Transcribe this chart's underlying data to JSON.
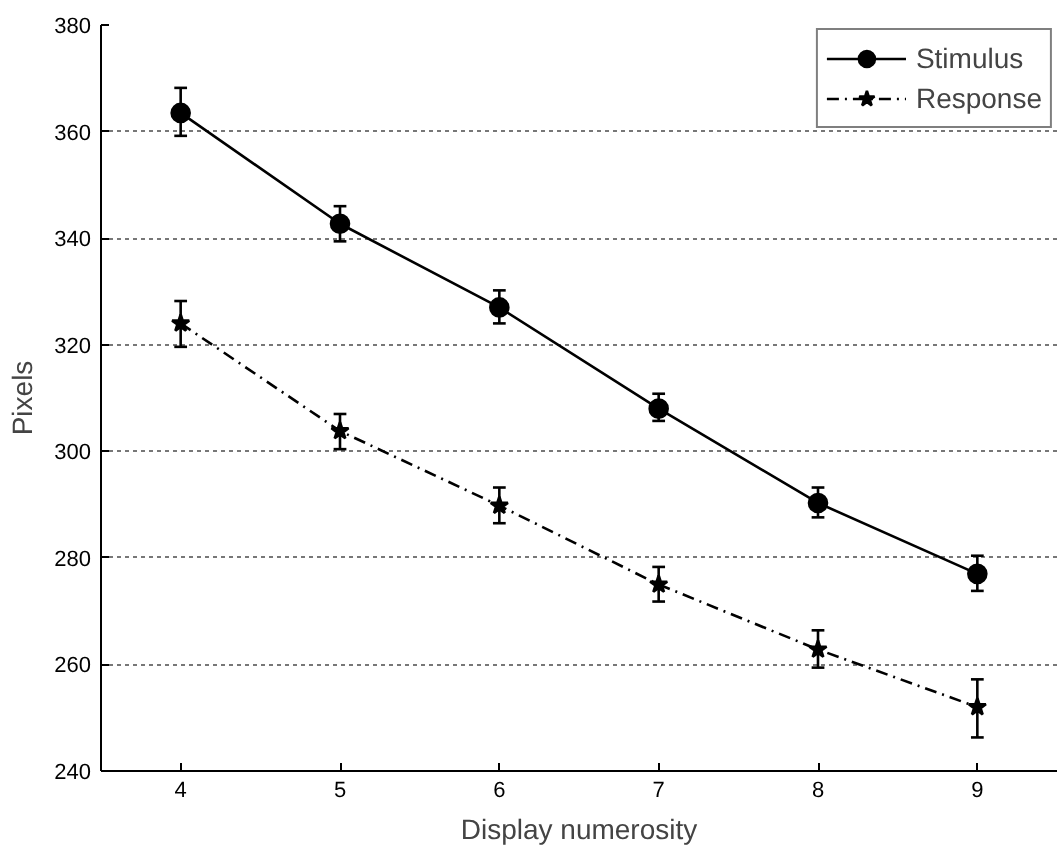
{
  "chart_data": {
    "type": "line",
    "xlabel": "Display numerosity",
    "ylabel": "Pixels",
    "x": [
      4,
      5,
      6,
      7,
      8,
      9
    ],
    "series": [
      {
        "name": "Stimulus",
        "color": "#000000",
        "marker": "circle",
        "line_style": "solid",
        "values": [
          363.5,
          342.7,
          327,
          308,
          290.3,
          277
        ],
        "errors": [
          [
            359.2,
            368.2
          ],
          [
            339.4,
            346
          ],
          [
            324,
            330.2
          ],
          [
            305.7,
            310.8
          ],
          [
            287.6,
            293.2
          ],
          [
            273.8,
            280.4
          ]
        ]
      },
      {
        "name": "Response",
        "color": "#000000",
        "marker": "star",
        "line_style": "dashdot",
        "values": [
          324,
          303.8,
          289.8,
          275,
          262.8,
          252
        ],
        "errors": [
          [
            319.6,
            328.2
          ],
          [
            300.4,
            307
          ],
          [
            286.5,
            293.2
          ],
          [
            271.8,
            278.3
          ],
          [
            259.4,
            266.4
          ],
          [
            246.3,
            257.2
          ]
        ]
      }
    ],
    "xlim": [
      3.5,
      9.5
    ],
    "ylim": [
      240,
      380
    ],
    "xticks": [
      4,
      5,
      6,
      7,
      8,
      9
    ],
    "yticks": [
      240,
      260,
      280,
      300,
      320,
      340,
      360,
      380
    ],
    "grid": "y",
    "legend": "top right"
  }
}
